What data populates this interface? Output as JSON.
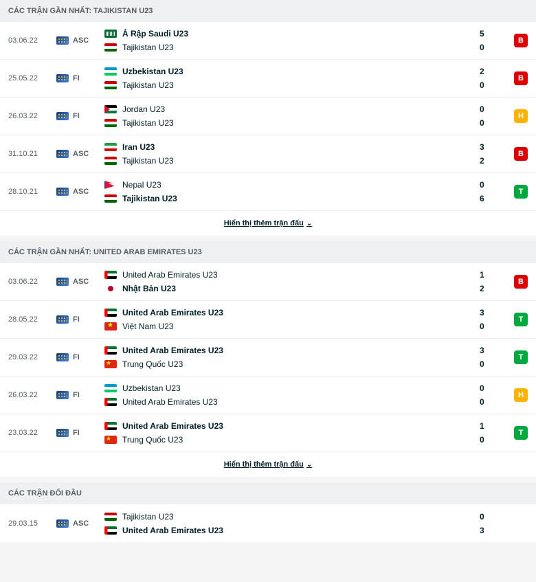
{
  "sections": [
    {
      "title": "CÁC TRẬN GẦN NHẤT: TAJIKISTAN U23",
      "matches": [
        {
          "date": "03.06.22",
          "league": "ASC",
          "team1": {
            "name": "Ả Rập Saudi U23",
            "flag": "sau",
            "winner": true,
            "score": "5"
          },
          "team2": {
            "name": "Tajikistan U23",
            "flag": "tjk",
            "winner": false,
            "score": "0"
          },
          "result": "B"
        },
        {
          "date": "25.05.22",
          "league": "FI",
          "team1": {
            "name": "Uzbekistan U23",
            "flag": "uzb",
            "winner": true,
            "score": "2"
          },
          "team2": {
            "name": "Tajikistan U23",
            "flag": "tjk",
            "winner": false,
            "score": "0"
          },
          "result": "B"
        },
        {
          "date": "26.03.22",
          "league": "FI",
          "team1": {
            "name": "Jordan U23",
            "flag": "jor",
            "winner": false,
            "score": "0"
          },
          "team2": {
            "name": "Tajikistan U23",
            "flag": "tjk",
            "winner": false,
            "score": "0"
          },
          "result": "H"
        },
        {
          "date": "31.10.21",
          "league": "ASC",
          "team1": {
            "name": "Iran U23",
            "flag": "irn",
            "winner": true,
            "score": "3"
          },
          "team2": {
            "name": "Tajikistan U23",
            "flag": "tjk",
            "winner": false,
            "score": "2"
          },
          "result": "B"
        },
        {
          "date": "28.10.21",
          "league": "ASC",
          "team1": {
            "name": "Nepal U23",
            "flag": "npl",
            "winner": false,
            "score": "0"
          },
          "team2": {
            "name": "Tajikistan U23",
            "flag": "tjk",
            "winner": true,
            "score": "6"
          },
          "result": "T"
        }
      ],
      "show_more": "Hiển thị thêm trận đấu"
    },
    {
      "title": "CÁC TRẬN GẦN NHẤT: UNITED ARAB EMIRATES U23",
      "matches": [
        {
          "date": "03.06.22",
          "league": "ASC",
          "team1": {
            "name": "United Arab Emirates U23",
            "flag": "uae",
            "winner": false,
            "score": "1"
          },
          "team2": {
            "name": "Nhật Bản U23",
            "flag": "jpn",
            "winner": true,
            "score": "2"
          },
          "result": "B"
        },
        {
          "date": "28.05.22",
          "league": "FI",
          "team1": {
            "name": "United Arab Emirates U23",
            "flag": "uae",
            "winner": true,
            "score": "3"
          },
          "team2": {
            "name": "Việt Nam U23",
            "flag": "vnm",
            "winner": false,
            "score": "0"
          },
          "result": "T"
        },
        {
          "date": "29.03.22",
          "league": "FI",
          "team1": {
            "name": "United Arab Emirates U23",
            "flag": "uae",
            "winner": true,
            "score": "3"
          },
          "team2": {
            "name": "Trung Quốc U23",
            "flag": "chn",
            "winner": false,
            "score": "0"
          },
          "result": "T"
        },
        {
          "date": "26.03.22",
          "league": "FI",
          "team1": {
            "name": "Uzbekistan U23",
            "flag": "uzb",
            "winner": false,
            "score": "0"
          },
          "team2": {
            "name": "United Arab Emirates U23",
            "flag": "uae",
            "winner": false,
            "score": "0"
          },
          "result": "H"
        },
        {
          "date": "23.03.22",
          "league": "FI",
          "team1": {
            "name": "United Arab Emirates U23",
            "flag": "uae",
            "winner": true,
            "score": "1"
          },
          "team2": {
            "name": "Trung Quốc U23",
            "flag": "chn",
            "winner": false,
            "score": "0"
          },
          "result": "T"
        }
      ],
      "show_more": "Hiển thị thêm trận đấu"
    },
    {
      "title": "CÁC TRẬN ĐỐI ĐẦU",
      "matches": [
        {
          "date": "29.03.15",
          "league": "ASC",
          "team1": {
            "name": "Tajikistan U23",
            "flag": "tjk",
            "winner": false,
            "score": "0"
          },
          "team2": {
            "name": "United Arab Emirates U23",
            "flag": "uae",
            "winner": true,
            "score": "3"
          },
          "result": null
        }
      ],
      "show_more": null
    }
  ]
}
